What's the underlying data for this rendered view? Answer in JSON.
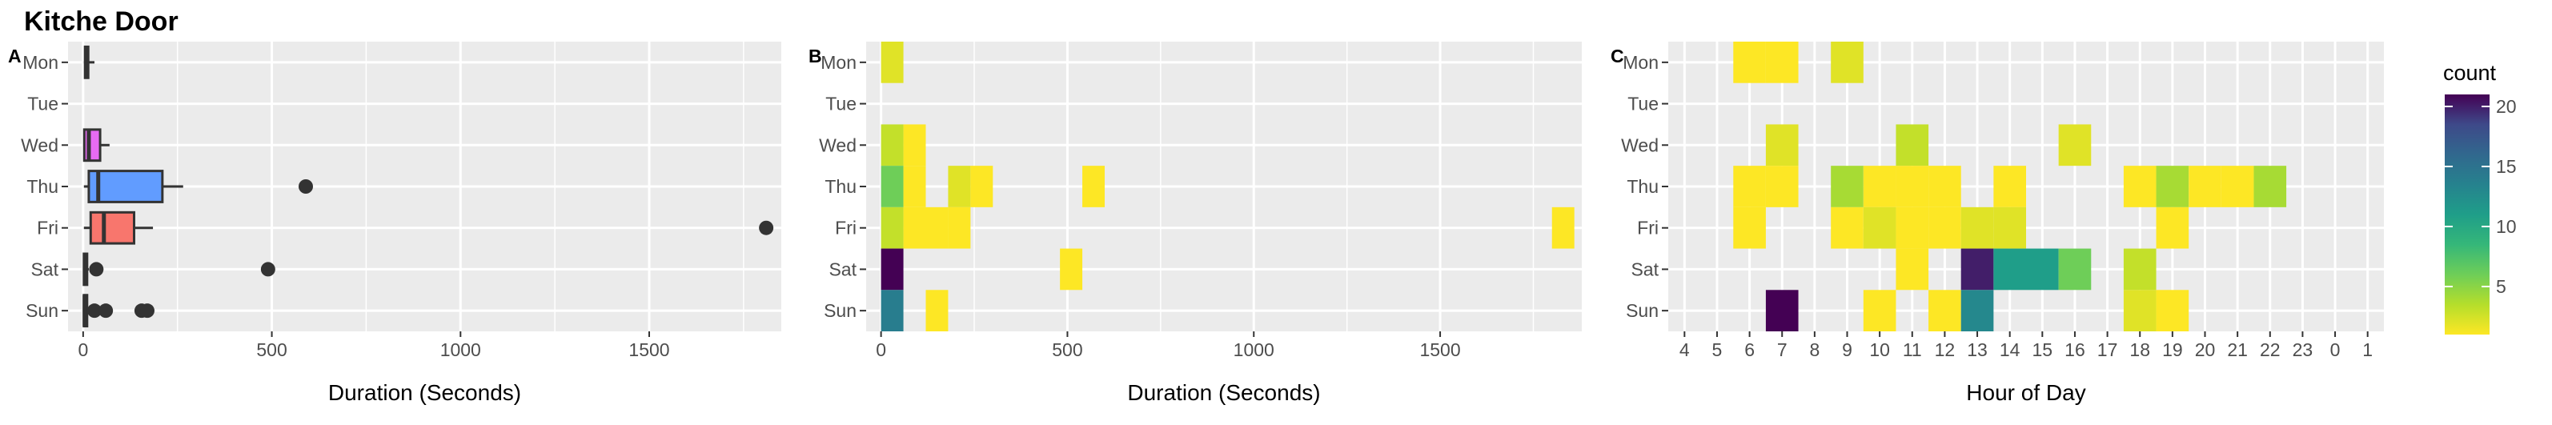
{
  "title": "Kitche Door",
  "days": [
    "Mon",
    "Tue",
    "Wed",
    "Thu",
    "Fri",
    "Sat",
    "Sun"
  ],
  "colors": {
    "panel_bg": "#ebebeb",
    "grid": "#ffffff",
    "box_fill_wed": "#e76bf3",
    "box_fill_thu": "#619cff",
    "box_fill_fri": "#f8766d",
    "box_line": "#333333",
    "outlier": "#333333"
  },
  "chart_data": [
    {
      "panel": "A",
      "type": "boxplot",
      "xlabel": "Duration (Seconds)",
      "ylabel": "",
      "xlim": [
        -40,
        1850
      ],
      "x_ticks": [
        0,
        500,
        1000,
        1500
      ],
      "categories": [
        "Mon",
        "Tue",
        "Wed",
        "Thu",
        "Fri",
        "Sat",
        "Sun"
      ],
      "boxes": [
        {
          "day": "Mon",
          "lower_whisker": 2,
          "q1": 5,
          "median": 8,
          "q3": 12,
          "upper_whisker": 30,
          "color": "#f8766d"
        },
        {
          "day": "Wed",
          "lower_whisker": 2,
          "q1": 3,
          "median": 15,
          "q3": 45,
          "upper_whisker": 70,
          "color": "#e76bf3"
        },
        {
          "day": "Thu",
          "lower_whisker": 2,
          "q1": 15,
          "median": 40,
          "q3": 210,
          "upper_whisker": 265,
          "color": "#619cff"
        },
        {
          "day": "Fri",
          "lower_whisker": 2,
          "q1": 20,
          "median": 55,
          "q3": 135,
          "upper_whisker": 185,
          "color": "#f8766d"
        },
        {
          "day": "Sat",
          "lower_whisker": 0,
          "q1": 2,
          "median": 5,
          "q3": 8,
          "upper_whisker": 15,
          "color": "#f8766d"
        },
        {
          "day": "Sun",
          "lower_whisker": 0,
          "q1": 2,
          "median": 4,
          "q3": 8,
          "upper_whisker": 15,
          "color": "#f8766d"
        }
      ],
      "outliers": [
        {
          "day": "Thu",
          "x": 590
        },
        {
          "day": "Fri",
          "x": 1810
        },
        {
          "day": "Sat",
          "x": 35
        },
        {
          "day": "Sat",
          "x": 490
        },
        {
          "day": "Sun",
          "x": 30
        },
        {
          "day": "Sun",
          "x": 60
        },
        {
          "day": "Sun",
          "x": 155
        },
        {
          "day": "Sun",
          "x": 170
        }
      ]
    },
    {
      "panel": "B",
      "type": "heatmap",
      "xlabel": "Duration (Seconds)",
      "ylabel": "",
      "xlim": [
        -40,
        1880
      ],
      "x_ticks": [
        0,
        500,
        1000,
        1500
      ],
      "bin_width": 60,
      "categories": [
        "Mon",
        "Tue",
        "Wed",
        "Thu",
        "Fri",
        "Sat",
        "Sun"
      ],
      "cells": [
        {
          "day": "Mon",
          "x": 30,
          "count": 2
        },
        {
          "day": "Wed",
          "x": 30,
          "count": 3
        },
        {
          "day": "Wed",
          "x": 90,
          "count": 1
        },
        {
          "day": "Thu",
          "x": 30,
          "count": 6
        },
        {
          "day": "Thu",
          "x": 90,
          "count": 1
        },
        {
          "day": "Thu",
          "x": 210,
          "count": 2
        },
        {
          "day": "Thu",
          "x": 270,
          "count": 1
        },
        {
          "day": "Thu",
          "x": 570,
          "count": 1
        },
        {
          "day": "Fri",
          "x": 30,
          "count": 3
        },
        {
          "day": "Fri",
          "x": 90,
          "count": 1
        },
        {
          "day": "Fri",
          "x": 150,
          "count": 1
        },
        {
          "day": "Fri",
          "x": 210,
          "count": 1
        },
        {
          "day": "Fri",
          "x": 1830,
          "count": 1
        },
        {
          "day": "Sat",
          "x": 30,
          "count": 21
        },
        {
          "day": "Sat",
          "x": 510,
          "count": 1
        },
        {
          "day": "Sun",
          "x": 30,
          "count": 14
        },
        {
          "day": "Sun",
          "x": 150,
          "count": 1
        }
      ]
    },
    {
      "panel": "C",
      "type": "heatmap",
      "xlabel": "Hour of Day",
      "ylabel": "",
      "x_categories": [
        "4",
        "5",
        "6",
        "7",
        "8",
        "9",
        "10",
        "11",
        "12",
        "13",
        "14",
        "15",
        "16",
        "17",
        "18",
        "19",
        "20",
        "21",
        "22",
        "23",
        "0",
        "1"
      ],
      "categories": [
        "Mon",
        "Tue",
        "Wed",
        "Thu",
        "Fri",
        "Sat",
        "Sun"
      ],
      "cells": [
        {
          "day": "Mon",
          "hour": "6",
          "count": 1
        },
        {
          "day": "Mon",
          "hour": "7",
          "count": 1
        },
        {
          "day": "Mon",
          "hour": "9",
          "count": 2
        },
        {
          "day": "Wed",
          "hour": "7",
          "count": 2
        },
        {
          "day": "Wed",
          "hour": "11",
          "count": 3
        },
        {
          "day": "Wed",
          "hour": "16",
          "count": 2
        },
        {
          "day": "Thu",
          "hour": "6",
          "count": 1
        },
        {
          "day": "Thu",
          "hour": "7",
          "count": 1
        },
        {
          "day": "Thu",
          "hour": "9",
          "count": 4
        },
        {
          "day": "Thu",
          "hour": "10",
          "count": 1
        },
        {
          "day": "Thu",
          "hour": "11",
          "count": 1
        },
        {
          "day": "Thu",
          "hour": "12",
          "count": 1
        },
        {
          "day": "Thu",
          "hour": "14",
          "count": 1
        },
        {
          "day": "Thu",
          "hour": "18",
          "count": 1
        },
        {
          "day": "Thu",
          "hour": "19",
          "count": 4
        },
        {
          "day": "Thu",
          "hour": "20",
          "count": 1
        },
        {
          "day": "Thu",
          "hour": "21",
          "count": 1
        },
        {
          "day": "Thu",
          "hour": "22",
          "count": 4
        },
        {
          "day": "Fri",
          "hour": "6",
          "count": 1
        },
        {
          "day": "Fri",
          "hour": "9",
          "count": 1
        },
        {
          "day": "Fri",
          "hour": "10",
          "count": 2
        },
        {
          "day": "Fri",
          "hour": "11",
          "count": 1
        },
        {
          "day": "Fri",
          "hour": "12",
          "count": 1
        },
        {
          "day": "Fri",
          "hour": "13",
          "count": 2
        },
        {
          "day": "Fri",
          "hour": "14",
          "count": 2
        },
        {
          "day": "Fri",
          "hour": "19",
          "count": 1
        },
        {
          "day": "Sat",
          "hour": "11",
          "count": 1
        },
        {
          "day": "Sat",
          "hour": "13",
          "count": 20
        },
        {
          "day": "Sat",
          "hour": "14",
          "count": 11
        },
        {
          "day": "Sat",
          "hour": "15",
          "count": 11
        },
        {
          "day": "Sat",
          "hour": "16",
          "count": 6
        },
        {
          "day": "Sat",
          "hour": "18",
          "count": 3
        },
        {
          "day": "Sun",
          "hour": "7",
          "count": 21
        },
        {
          "day": "Sun",
          "hour": "10",
          "count": 1
        },
        {
          "day": "Sun",
          "hour": "12",
          "count": 1
        },
        {
          "day": "Sun",
          "hour": "13",
          "count": 13
        },
        {
          "day": "Sun",
          "hour": "18",
          "count": 2
        },
        {
          "day": "Sun",
          "hour": "19",
          "count": 1
        }
      ]
    }
  ],
  "legend": {
    "title": "count",
    "ticks": [
      5,
      10,
      15,
      20
    ],
    "range": [
      1,
      21
    ],
    "placement": "right",
    "colormap": "viridis (reversed: yellow = low, dark purple = high)"
  }
}
